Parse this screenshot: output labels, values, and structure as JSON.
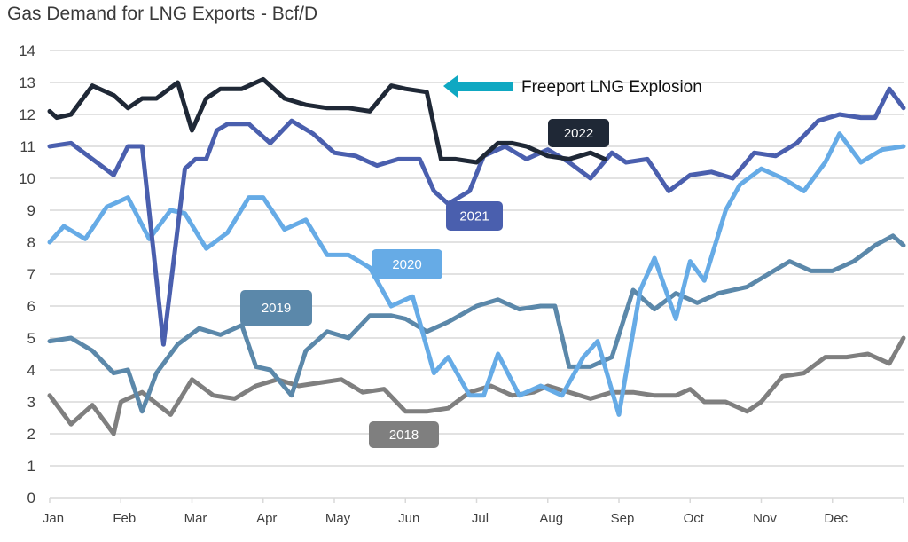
{
  "chart_data": {
    "type": "line",
    "title": "Gas Demand for LNG Exports - Bcf/D",
    "xlabel": "",
    "ylabel": "Bcf/D",
    "ylim": [
      0,
      14
    ],
    "yticks": [
      "0",
      "1",
      "2",
      "3",
      "4",
      "5",
      "6",
      "7",
      "8",
      "9",
      "10",
      "11",
      "12",
      "13",
      "14"
    ],
    "xticks": [
      "Jan",
      "Feb",
      "Mar",
      "Apr",
      "May",
      "Jun",
      "Jul",
      "Aug",
      "Sep",
      "Oct",
      "Nov",
      "Dec"
    ],
    "grid": true,
    "legend": "inline labels",
    "annotation": {
      "text": "Freeport LNG Explosion",
      "arrow_color": "#0FA8C2"
    },
    "series": [
      {
        "name": "2018",
        "color": "#7F7F7F",
        "x": [
          0,
          0.3,
          0.6,
          0.9,
          1.0,
          1.3,
          1.7,
          2.0,
          2.3,
          2.6,
          2.9,
          3.2,
          3.5,
          3.8,
          4.1,
          4.4,
          4.7,
          5.0,
          5.3,
          5.6,
          5.9,
          6.2,
          6.5,
          6.8,
          7.0,
          7.3,
          7.6,
          7.9,
          8.2,
          8.5,
          8.8,
          9.0,
          9.2,
          9.5,
          9.8,
          10.0,
          10.3,
          10.6,
          10.9,
          11.2,
          11.5,
          11.8,
          12.0
        ],
        "y": [
          3.2,
          2.3,
          2.9,
          2.0,
          3.0,
          3.3,
          2.6,
          3.7,
          3.2,
          3.1,
          3.5,
          3.7,
          3.5,
          3.6,
          3.7,
          3.3,
          3.4,
          2.7,
          2.7,
          2.8,
          3.3,
          3.5,
          3.2,
          3.3,
          3.5,
          3.3,
          3.1,
          3.3,
          3.3,
          3.2,
          3.2,
          3.4,
          3.0,
          3.0,
          2.7,
          3.0,
          3.8,
          3.9,
          4.4,
          4.4,
          4.5,
          4.2,
          5.0
        ]
      },
      {
        "name": "2019",
        "color": "#5B88AA",
        "x": [
          0,
          0.3,
          0.6,
          0.9,
          1.1,
          1.3,
          1.5,
          1.8,
          2.1,
          2.4,
          2.7,
          2.9,
          3.1,
          3.4,
          3.6,
          3.9,
          4.2,
          4.5,
          4.8,
          5.0,
          5.3,
          5.6,
          6.0,
          6.3,
          6.6,
          6.9,
          7.1,
          7.3,
          7.6,
          7.9,
          8.2,
          8.5,
          8.8,
          9.1,
          9.4,
          9.8,
          10.1,
          10.4,
          10.7,
          11.0,
          11.3,
          11.6,
          11.85,
          12.0
        ],
        "y": [
          4.9,
          5.0,
          4.6,
          3.9,
          4.0,
          2.7,
          3.9,
          4.8,
          5.3,
          5.1,
          5.4,
          4.1,
          4.0,
          3.2,
          4.6,
          5.2,
          5.0,
          5.7,
          5.7,
          5.6,
          5.2,
          5.5,
          6.0,
          6.2,
          5.9,
          6.0,
          6.0,
          4.1,
          4.1,
          4.4,
          6.5,
          5.9,
          6.4,
          6.1,
          6.4,
          6.6,
          7.0,
          7.4,
          7.1,
          7.1,
          7.4,
          7.9,
          8.2,
          7.9
        ]
      },
      {
        "name": "2020",
        "color": "#66ABE6",
        "x": [
          0,
          0.2,
          0.5,
          0.8,
          1.1,
          1.4,
          1.7,
          1.9,
          2.2,
          2.5,
          2.8,
          3.0,
          3.3,
          3.6,
          3.9,
          4.2,
          4.5,
          4.8,
          5.1,
          5.4,
          5.6,
          5.9,
          6.1,
          6.3,
          6.6,
          6.9,
          7.2,
          7.5,
          7.7,
          8.0,
          8.3,
          8.5,
          8.8,
          9.0,
          9.2,
          9.5,
          9.7,
          10.0,
          10.3,
          10.6,
          10.9,
          11.1,
          11.4,
          11.7,
          12.0
        ],
        "y": [
          8.0,
          8.5,
          8.1,
          9.1,
          9.4,
          8.1,
          9.0,
          8.9,
          7.8,
          8.3,
          9.4,
          9.4,
          8.4,
          8.7,
          7.6,
          7.6,
          7.2,
          6.0,
          6.3,
          3.9,
          4.4,
          3.2,
          3.2,
          4.5,
          3.2,
          3.5,
          3.2,
          4.4,
          4.9,
          2.6,
          6.5,
          7.5,
          5.6,
          7.4,
          6.8,
          9.0,
          9.8,
          10.3,
          10.0,
          9.6,
          10.5,
          11.4,
          10.5,
          10.9,
          11.0
        ]
      },
      {
        "name": "2021",
        "color": "#4A5FAE",
        "x": [
          0,
          0.3,
          0.6,
          0.9,
          1.1,
          1.3,
          1.6,
          1.9,
          2.05,
          2.2,
          2.35,
          2.5,
          2.8,
          3.1,
          3.4,
          3.7,
          4.0,
          4.3,
          4.6,
          4.9,
          5.2,
          5.4,
          5.6,
          5.9,
          6.1,
          6.4,
          6.7,
          7.0,
          7.3,
          7.6,
          7.9,
          8.1,
          8.4,
          8.7,
          9.0,
          9.3,
          9.6,
          9.9,
          10.2,
          10.5,
          10.8,
          11.1,
          11.4,
          11.6,
          11.8,
          12.0
        ],
        "y": [
          11.0,
          11.1,
          10.6,
          10.1,
          11.0,
          11.0,
          4.8,
          10.3,
          10.6,
          10.6,
          11.5,
          11.7,
          11.7,
          11.1,
          11.8,
          11.4,
          10.8,
          10.7,
          10.4,
          10.6,
          10.6,
          9.6,
          9.2,
          9.6,
          10.7,
          11.0,
          10.6,
          10.9,
          10.5,
          10.0,
          10.8,
          10.5,
          10.6,
          9.6,
          10.1,
          10.2,
          10.0,
          10.8,
          10.7,
          11.1,
          11.8,
          12.0,
          11.9,
          11.9,
          12.8,
          12.2
        ]
      },
      {
        "name": "2022",
        "color": "#1F2836",
        "x": [
          0,
          0.1,
          0.3,
          0.6,
          0.9,
          1.1,
          1.3,
          1.5,
          1.8,
          2.0,
          2.2,
          2.4,
          2.7,
          3.0,
          3.3,
          3.6,
          3.9,
          4.2,
          4.5,
          4.8,
          5.0,
          5.3,
          5.5,
          5.7,
          6.0,
          6.3,
          6.5,
          6.7,
          7.0,
          7.3,
          7.6,
          7.8
        ],
        "y": [
          12.1,
          11.9,
          12.0,
          12.9,
          12.6,
          12.2,
          12.5,
          12.5,
          13.0,
          11.5,
          12.5,
          12.8,
          12.8,
          13.1,
          12.5,
          12.3,
          12.2,
          12.2,
          12.1,
          12.9,
          12.8,
          12.7,
          10.6,
          10.6,
          10.5,
          11.1,
          11.1,
          11.0,
          10.7,
          10.6,
          10.8,
          10.6
        ]
      }
    ],
    "data_labels": [
      {
        "series": "2022",
        "text": "2022"
      },
      {
        "series": "2021",
        "text": "2021"
      },
      {
        "series": "2020",
        "text": "2020"
      },
      {
        "series": "2019",
        "text": "2019"
      },
      {
        "series": "2018",
        "text": "2018"
      }
    ]
  }
}
